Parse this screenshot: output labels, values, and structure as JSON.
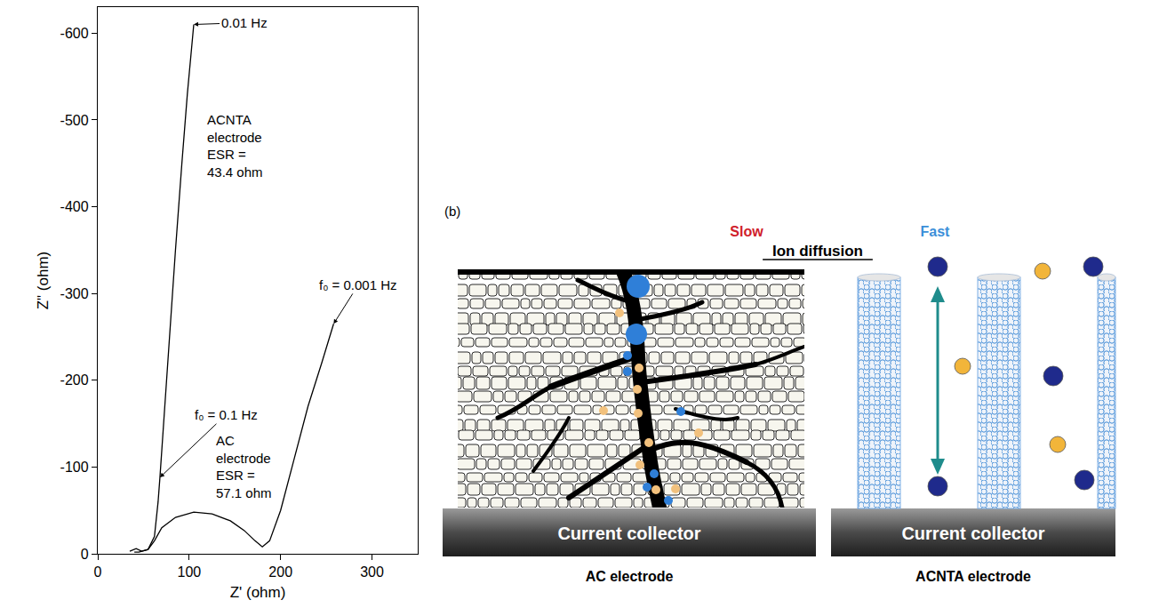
{
  "chart_data": {
    "type": "line",
    "x_label": "Z' (ohm)",
    "y_label": "Z\" (ohm)",
    "xlim": [
      0,
      350
    ],
    "xticks": [
      0,
      100,
      200,
      300
    ],
    "ylim": [
      0,
      -630
    ],
    "yticks": [
      0,
      -100,
      -200,
      -300,
      -400,
      -500,
      -600
    ],
    "grid": false,
    "series": [
      {
        "color": "#000000",
        "x": [
          35,
          42,
          48,
          55,
          62,
          64,
          66,
          68,
          72,
          78,
          85,
          92,
          98,
          105
        ],
        "values": [
          -3,
          -6,
          -3,
          -5,
          -20,
          -40,
          -60,
          -88,
          -150,
          -250,
          -350,
          -450,
          -530,
          -610
        ]
      },
      {
        "color": "#000000",
        "x": [
          40,
          45,
          55,
          62,
          70,
          85,
          105,
          125,
          145,
          160,
          172,
          180,
          188,
          200,
          215,
          230,
          245,
          258
        ],
        "values": [
          -2,
          -2,
          -5,
          -15,
          -30,
          -42,
          -48,
          -46,
          -38,
          -27,
          -15,
          -8,
          -15,
          -50,
          -110,
          -170,
          -220,
          -265
        ]
      }
    ],
    "annotations": [
      {
        "text": "0.01 Hz",
        "at": [
          105,
          -610
        ],
        "text_at": [
          160,
          -612
        ]
      },
      {
        "lines": [
          "ACNTA",
          "electrode",
          "ESR =",
          "43.4 ohm"
        ],
        "text_at": [
          150,
          -470
        ]
      },
      {
        "text": "f₀ = 0.001 Hz",
        "at": [
          258,
          -265
        ],
        "text_at": [
          285,
          -310
        ]
      },
      {
        "text": "f₀ = 0.1 Hz",
        "at": [
          68,
          -88
        ],
        "text_at": [
          140,
          -160
        ]
      },
      {
        "lines": [
          "AC",
          "electrode",
          "ESR =",
          "57.1 ohm"
        ],
        "text_at": [
          160,
          -100
        ]
      }
    ]
  },
  "diagram": {
    "label": "(b)",
    "title": "Ion diffusion",
    "panels": [
      {
        "speed": "Slow",
        "speed_color": "#d0202a",
        "collector": "Current collector",
        "caption": "AC electrode"
      },
      {
        "speed": "Fast",
        "speed_color": "#3b8fd9",
        "collector": "Current collector",
        "caption": "ACNTA electrode"
      }
    ]
  }
}
